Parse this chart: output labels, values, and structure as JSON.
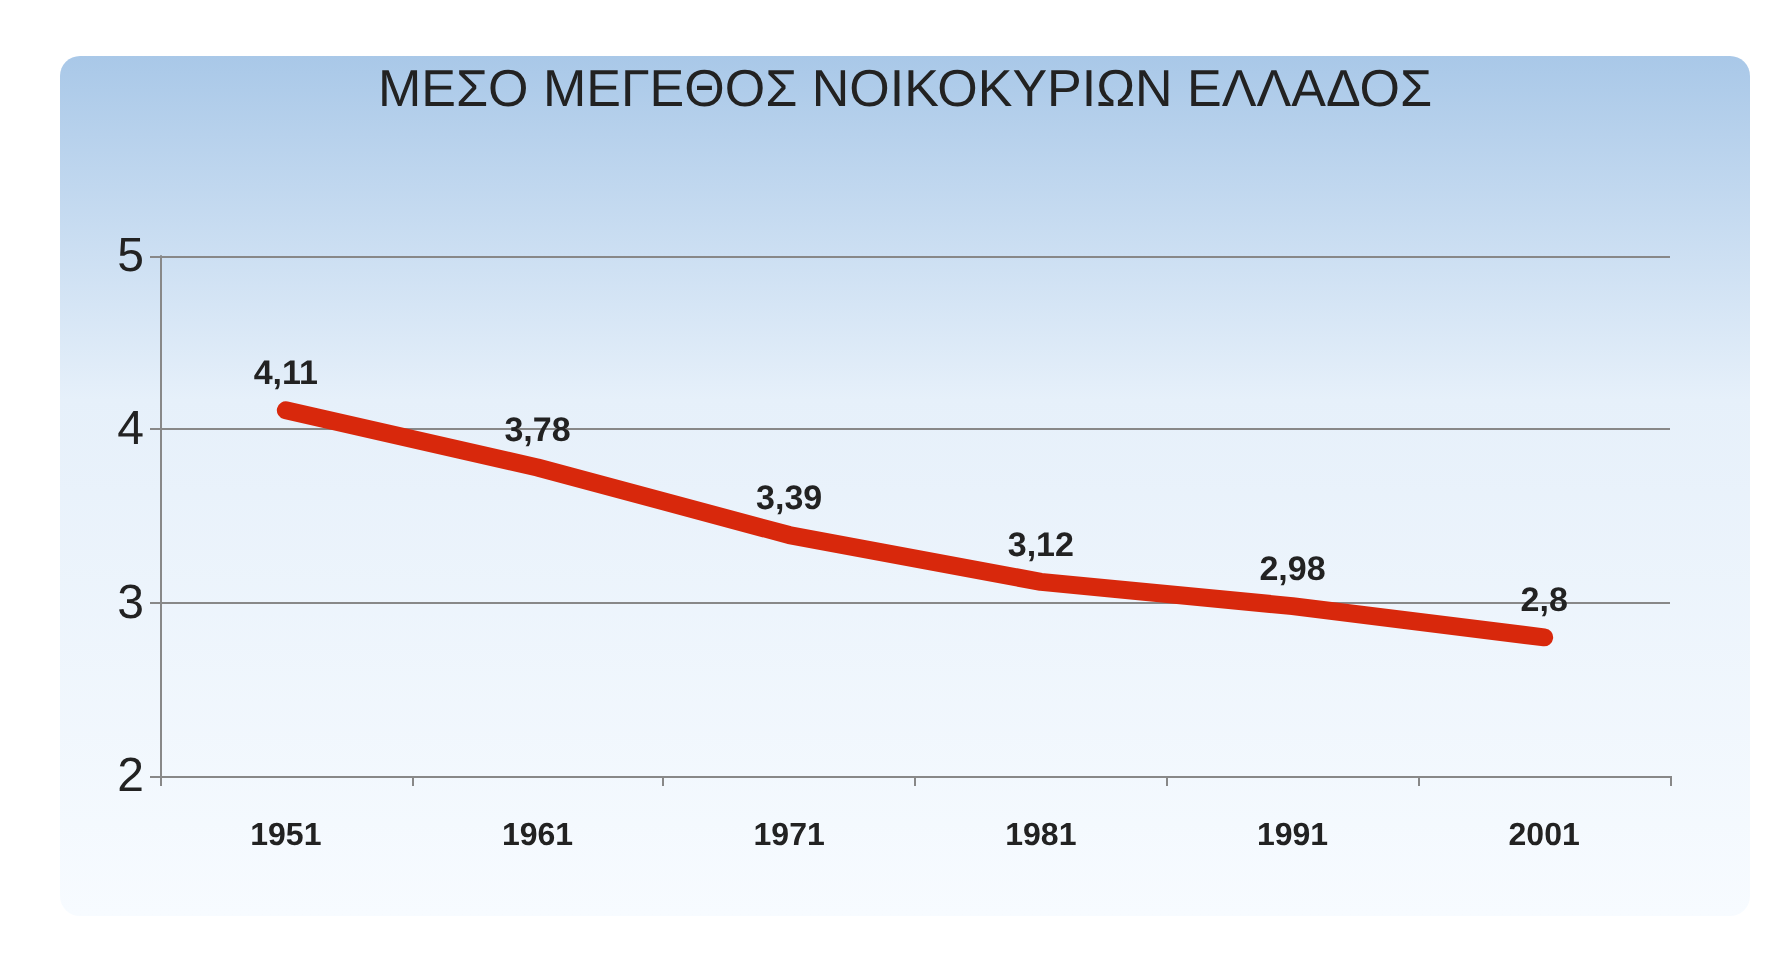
{
  "chart_data": {
    "type": "line",
    "title": "ΜΕΣΟ ΜΕΓΕΘΟΣ ΝΟΙΚΟΚΥΡΙΩΝ ΕΛΛΑΔΟΣ",
    "categories": [
      "1951",
      "1961",
      "1971",
      "1981",
      "1991",
      "2001"
    ],
    "series": [
      {
        "color": "#d8280c",
        "values": [
          4.11,
          3.78,
          3.39,
          3.12,
          2.98,
          2.8
        ],
        "value_labels": [
          "4,11",
          "3,78",
          "3,39",
          "3,12",
          "2,98",
          "2,8"
        ]
      }
    ],
    "ylim": [
      2,
      5
    ],
    "yticks": [
      2,
      3,
      4,
      5
    ],
    "grid": "y",
    "marker": "none",
    "line_style": "solid"
  }
}
